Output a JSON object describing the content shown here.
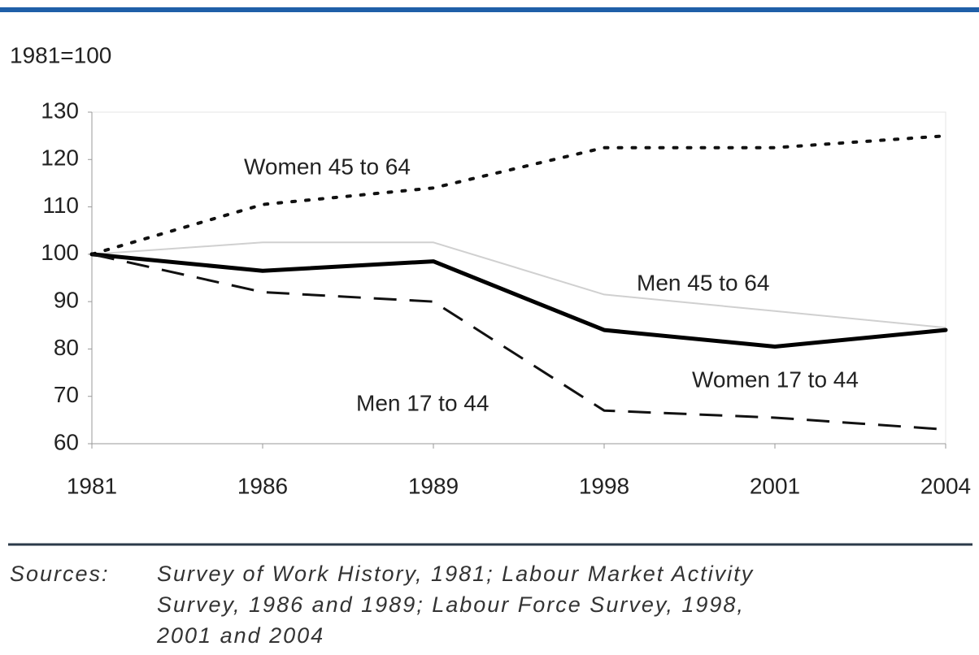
{
  "chart_data": {
    "type": "line",
    "y_label": "1981=100",
    "categories": [
      "1981",
      "1986",
      "1989",
      "1998",
      "2001",
      "2004"
    ],
    "series": [
      {
        "name": "Women 45 to 64",
        "color": "#111111",
        "line_style": "dotted",
        "values": [
          100,
          110.5,
          114,
          122.5,
          122.5,
          125
        ]
      },
      {
        "name": "Men 45 to 64",
        "color": "#d0d0d0",
        "line_style": "thin",
        "values": [
          100,
          102.5,
          102.5,
          91.5,
          88,
          84.5
        ]
      },
      {
        "name": "Women 17 to 44",
        "color": "#000000",
        "line_style": "thick",
        "values": [
          100,
          96.5,
          98.5,
          84,
          80.5,
          84
        ]
      },
      {
        "name": "Men 17 to 44",
        "color": "#111111",
        "line_style": "dashed",
        "values": [
          100,
          92,
          90,
          67,
          65.5,
          63
        ]
      }
    ],
    "ylim": [
      60,
      130
    ],
    "yticks": [
      60,
      70,
      80,
      90,
      100,
      110,
      120,
      130
    ],
    "grid": false
  },
  "footer": {
    "label": "Sources:",
    "lines": [
      "Survey of Work History, 1981; Labour Market Activity",
      "Survey, 1986 and 1989; Labour Force Survey, 1998,",
      "2001 and 2004"
    ]
  }
}
